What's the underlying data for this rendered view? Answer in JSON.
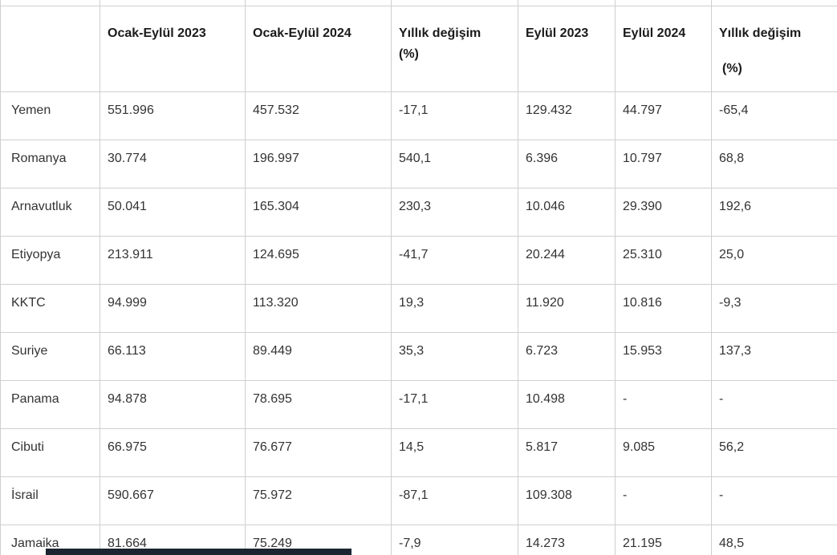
{
  "chart_data": {
    "type": "table",
    "title": "",
    "columns": [
      "",
      "Ocak-Eylül 2023",
      "Ocak-Eylül 2024",
      "Yıllık değişim (%)",
      "Eylül 2023",
      "Eylül 2024",
      "Yıllık değişim (%)"
    ],
    "rows": [
      [
        "Yemen",
        "551.996",
        "457.532",
        "-17,1",
        "129.432",
        "44.797",
        "-65,4"
      ],
      [
        "Romanya",
        "30.774",
        "196.997",
        "540,1",
        "6.396",
        "10.797",
        "68,8"
      ],
      [
        "Arnavutluk",
        "50.041",
        "165.304",
        "230,3",
        "10.046",
        "29.390",
        "192,6"
      ],
      [
        "Etiyopya",
        "213.911",
        "124.695",
        "-41,7",
        "20.244",
        "25.310",
        "25,0"
      ],
      [
        "KKTC",
        "94.999",
        "113.320",
        "19,3",
        "11.920",
        "10.816",
        "-9,3"
      ],
      [
        "Suriye",
        "66.113",
        "89.449",
        "35,3",
        "6.723",
        "15.953",
        "137,3"
      ],
      [
        "Panama",
        "94.878",
        "78.695",
        "-17,1",
        "10.498",
        "-",
        "-"
      ],
      [
        "Cibuti",
        "66.975",
        "76.677",
        "14,5",
        "5.817",
        "9.085",
        "56,2"
      ],
      [
        "İsrail",
        "590.667",
        "75.972",
        "-87,1",
        "109.308",
        "-",
        "-"
      ],
      [
        "Jamaika",
        "81.664",
        "75.249",
        "-7,9",
        "14.273",
        "21.195",
        "48,5"
      ]
    ]
  },
  "header_display": [
    {
      "line1": "",
      "line2": ""
    },
    {
      "line1": "Ocak-Eylül 2023",
      "line2": ""
    },
    {
      "line1": "Ocak-Eylül 2024",
      "line2": ""
    },
    {
      "line1": "Yıllık değişim",
      "line2": "(%)"
    },
    {
      "line1": "Eylül 2023",
      "line2": ""
    },
    {
      "line1": "Eylül 2024",
      "line2": ""
    },
    {
      "line1": "Yıllık değişim",
      "line2": "(%)"
    }
  ],
  "colors": {
    "background": "#ffffff",
    "grid_border": "#cfcfcf",
    "header_text": "#1a1a1a",
    "cell_text": "#333333",
    "bottom_cut_element": "#1b2531"
  }
}
